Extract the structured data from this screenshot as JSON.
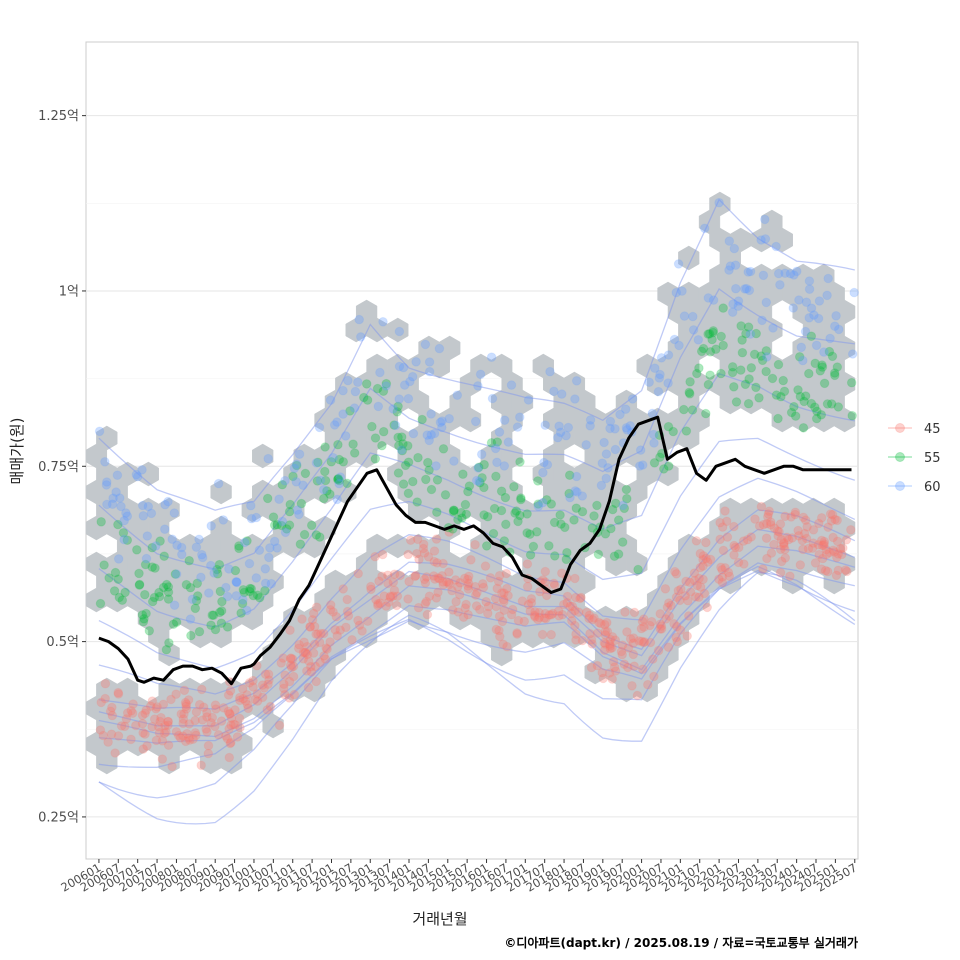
{
  "chart_data": {
    "type": "scatter",
    "title": "",
    "xlabel": "거래년월",
    "ylabel": "매매가(원)",
    "caption": "©디아파트(dapt.kr) / 2025.08.19 / 자료=국토교통부 실거래가",
    "x_ticks": [
      "200601",
      "200607",
      "200701",
      "200707",
      "200801",
      "200807",
      "200901",
      "200907",
      "201001",
      "201007",
      "201101",
      "201107",
      "201201",
      "201207",
      "201301",
      "201307",
      "201401",
      "201407",
      "201501",
      "201507",
      "201601",
      "201607",
      "201701",
      "201707",
      "201801",
      "201807",
      "201901",
      "201907",
      "202001",
      "202007",
      "202101",
      "202107",
      "202201",
      "202207",
      "202301",
      "202307",
      "202401",
      "202407",
      "202501",
      "202507"
    ],
    "x_range_months": [
      -4,
      235
    ],
    "y_ticks": [
      {
        "value": 0.25,
        "label": "0.25억"
      },
      {
        "value": 0.5,
        "label": "0.5억"
      },
      {
        "value": 0.75,
        "label": "0.75억"
      },
      {
        "value": 1.0,
        "label": "1억"
      },
      {
        "value": 1.25,
        "label": "1.25억"
      }
    ],
    "ylim": [
      0.19,
      1.355
    ],
    "legend_position": "right",
    "series": [
      {
        "name": "45",
        "color": "#F8766D",
        "anchors": [
          [
            0,
            0.4
          ],
          [
            18,
            0.38
          ],
          [
            36,
            0.38
          ],
          [
            48,
            0.41
          ],
          [
            60,
            0.46
          ],
          [
            72,
            0.52
          ],
          [
            84,
            0.56
          ],
          [
            96,
            0.6
          ],
          [
            108,
            0.59
          ],
          [
            120,
            0.57
          ],
          [
            132,
            0.55
          ],
          [
            144,
            0.55
          ],
          [
            156,
            0.5
          ],
          [
            168,
            0.48
          ],
          [
            180,
            0.56
          ],
          [
            192,
            0.62
          ],
          [
            204,
            0.66
          ],
          [
            216,
            0.65
          ],
          [
            234,
            0.62
          ]
        ]
      },
      {
        "name": "55",
        "color": "#00BA38",
        "anchors": [
          [
            0,
            0.62
          ],
          [
            18,
            0.56
          ],
          [
            36,
            0.55
          ],
          [
            48,
            0.6
          ],
          [
            60,
            0.66
          ],
          [
            72,
            0.74
          ],
          [
            84,
            0.82
          ],
          [
            96,
            0.76
          ],
          [
            108,
            0.71
          ],
          [
            120,
            0.69
          ],
          [
            132,
            0.68
          ],
          [
            144,
            0.68
          ],
          [
            156,
            0.67
          ],
          [
            168,
            0.68
          ],
          [
            180,
            0.82
          ],
          [
            192,
            0.92
          ],
          [
            204,
            0.88
          ],
          [
            216,
            0.86
          ],
          [
            234,
            0.86
          ]
        ]
      },
      {
        "name": "60",
        "color": "#619CFF",
        "anchors": [
          [
            0,
            0.74
          ],
          [
            18,
            0.66
          ],
          [
            36,
            0.62
          ],
          [
            48,
            0.63
          ],
          [
            60,
            0.7
          ],
          [
            72,
            0.78
          ],
          [
            84,
            0.9
          ],
          [
            96,
            0.84
          ],
          [
            108,
            0.82
          ],
          [
            120,
            0.8
          ],
          [
            132,
            0.78
          ],
          [
            144,
            0.77
          ],
          [
            156,
            0.75
          ],
          [
            168,
            0.8
          ],
          [
            180,
            0.96
          ],
          [
            192,
            1.08
          ],
          [
            204,
            1.02
          ],
          [
            216,
            0.98
          ],
          [
            234,
            0.96
          ]
        ]
      }
    ],
    "trend_line": {
      "name": "median",
      "color": "#000000",
      "x": [
        0,
        3,
        6,
        9,
        12,
        14,
        17,
        20,
        23,
        26,
        29,
        32,
        35,
        38,
        41,
        44,
        47,
        48,
        50,
        53,
        56,
        59,
        62,
        65,
        68,
        71,
        74,
        77,
        80,
        83,
        86,
        89,
        92,
        95,
        98,
        101,
        104,
        107,
        110,
        113,
        116,
        119,
        122,
        125,
        128,
        131,
        134,
        137,
        140,
        143,
        146,
        149,
        152,
        155,
        158,
        161,
        164,
        167,
        170,
        173,
        176,
        179,
        182,
        185,
        188,
        191,
        194,
        197,
        200,
        203,
        206,
        209,
        212,
        215,
        218,
        221,
        224,
        227,
        230,
        233
      ],
      "y": [
        0.505,
        0.5,
        0.49,
        0.475,
        0.445,
        0.442,
        0.448,
        0.445,
        0.46,
        0.465,
        0.465,
        0.46,
        0.462,
        0.455,
        0.44,
        0.462,
        0.465,
        0.468,
        0.48,
        0.492,
        0.51,
        0.53,
        0.56,
        0.58,
        0.61,
        0.64,
        0.67,
        0.7,
        0.72,
        0.74,
        0.745,
        0.72,
        0.695,
        0.68,
        0.67,
        0.67,
        0.665,
        0.66,
        0.665,
        0.66,
        0.665,
        0.655,
        0.64,
        0.635,
        0.62,
        0.595,
        0.59,
        0.58,
        0.57,
        0.575,
        0.61,
        0.63,
        0.64,
        0.66,
        0.7,
        0.76,
        0.79,
        0.81,
        0.815,
        0.82,
        0.76,
        0.77,
        0.775,
        0.74,
        0.73,
        0.75,
        0.755,
        0.76,
        0.75,
        0.745,
        0.74,
        0.745,
        0.75,
        0.75,
        0.745,
        0.745,
        0.745,
        0.745,
        0.745,
        0.745
      ]
    }
  }
}
